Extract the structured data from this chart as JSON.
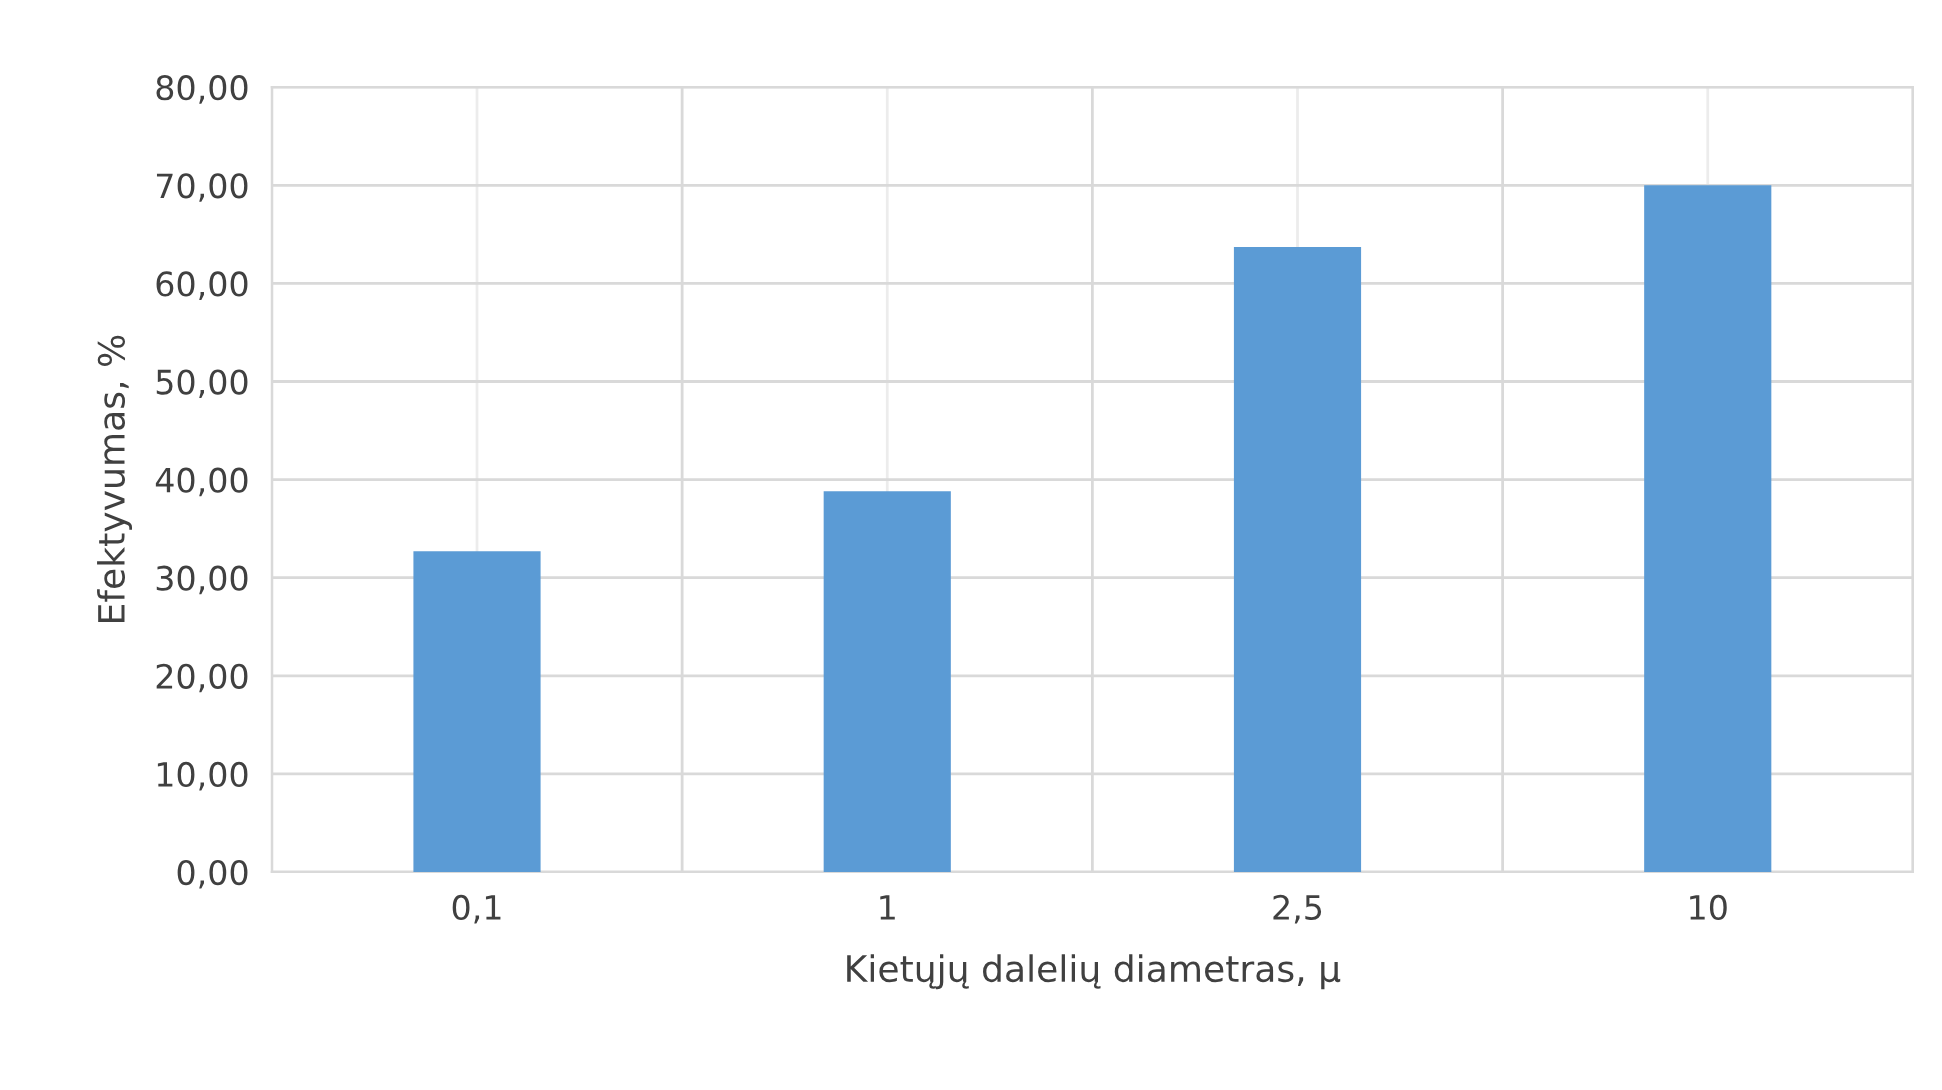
{
  "chart_data": {
    "type": "bar",
    "xlabel": "Kietųjų dalelių diametras, μ",
    "ylabel": "Efektyvumas, %",
    "categories": [
      "0,1",
      "1",
      "2,5",
      "10"
    ],
    "values": [
      32.7,
      38.8,
      63.7,
      70.0
    ],
    "color": "#5b9bd5",
    "ylim": [
      0,
      80
    ],
    "yticks": [
      {
        "value": 0,
        "label": "0,00"
      },
      {
        "value": 10,
        "label": "10,00"
      },
      {
        "value": 20,
        "label": "20,00"
      },
      {
        "value": 30,
        "label": "30,00"
      },
      {
        "value": 40,
        "label": "40,00"
      },
      {
        "value": 50,
        "label": "50,00"
      },
      {
        "value": 60,
        "label": "60,00"
      },
      {
        "value": 70,
        "label": "70,00"
      },
      {
        "value": 80,
        "label": "80,00"
      }
    ],
    "grid": true
  }
}
